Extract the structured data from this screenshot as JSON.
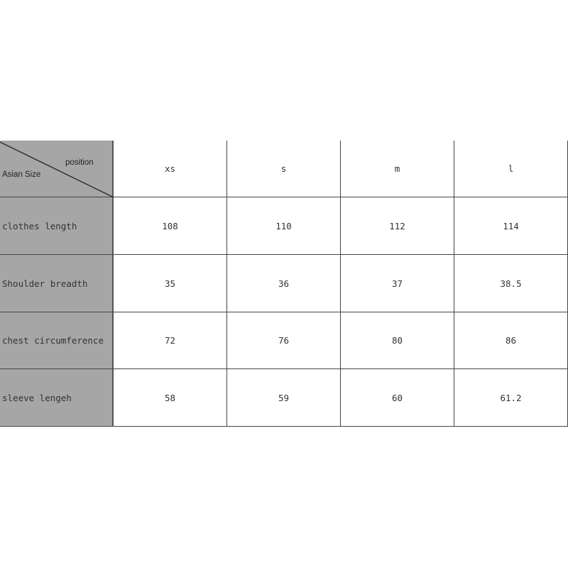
{
  "table": {
    "corner": {
      "top_right_label": "position",
      "bottom_left_label": "Asian Size"
    },
    "columns": [
      "xs",
      "s",
      "m",
      "l"
    ],
    "rows": [
      {
        "label": "clothes length",
        "values": [
          "108",
          "110",
          "112",
          "114"
        ]
      },
      {
        "label": "Shoulder breadth",
        "values": [
          "35",
          "36",
          "37",
          "38.5"
        ]
      },
      {
        "label": "chest circumference",
        "values": [
          "72",
          "76",
          "80",
          "86"
        ]
      },
      {
        "label": "sleeve lengeh",
        "values": [
          "58",
          "59",
          "60",
          "61.2"
        ]
      }
    ]
  },
  "colors": {
    "header_fill": "#a6a6a6",
    "grid_line": "#444444"
  }
}
